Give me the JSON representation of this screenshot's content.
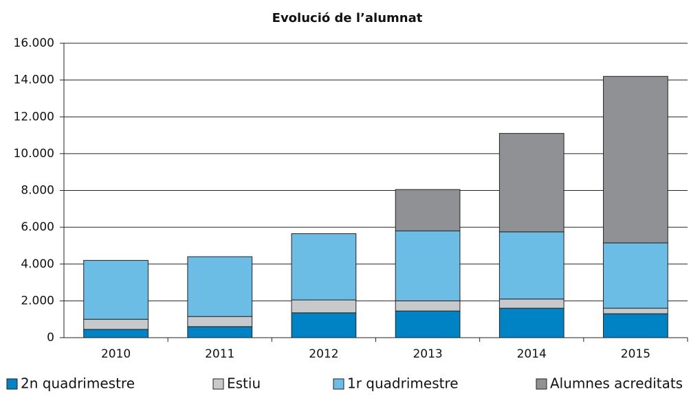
{
  "chart_data": {
    "type": "stacked_bar",
    "title": "Evolució de l’alumnat",
    "categories": [
      "2010",
      "2011",
      "2012",
      "2013",
      "2014",
      "2015"
    ],
    "series": [
      {
        "name": "2n quadrimestre",
        "color": "#0083c4",
        "values": [
          450,
          600,
          1350,
          1450,
          1600,
          1300
        ]
      },
      {
        "name": "Estiu",
        "color": "#c8c9cb",
        "values": [
          550,
          550,
          700,
          550,
          500,
          300
        ]
      },
      {
        "name": "1r quadrimestre",
        "color": "#6bbde6",
        "values": [
          3200,
          3250,
          3600,
          3800,
          3650,
          3550
        ]
      },
      {
        "name": "Alumnes acreditats",
        "color": "#8f9194",
        "values": [
          0,
          0,
          0,
          2250,
          5350,
          9050
        ]
      }
    ],
    "ylim": [
      0,
      16000
    ],
    "yticks": [
      0,
      {
        "value": 2000,
        "label": "2.000"
      },
      {
        "value": 4000,
        "label": "4.000"
      },
      {
        "value": 6000,
        "label": "6.000"
      },
      {
        "value": 8000,
        "label": "8.000"
      },
      {
        "value": 10000,
        "label": "10.000"
      },
      {
        "value": 12000,
        "label": "12.000"
      },
      {
        "value": 14000,
        "label": "14.000"
      },
      {
        "value": 16000,
        "label": "16.000"
      }
    ],
    "grid": true,
    "legend": "bottom"
  }
}
